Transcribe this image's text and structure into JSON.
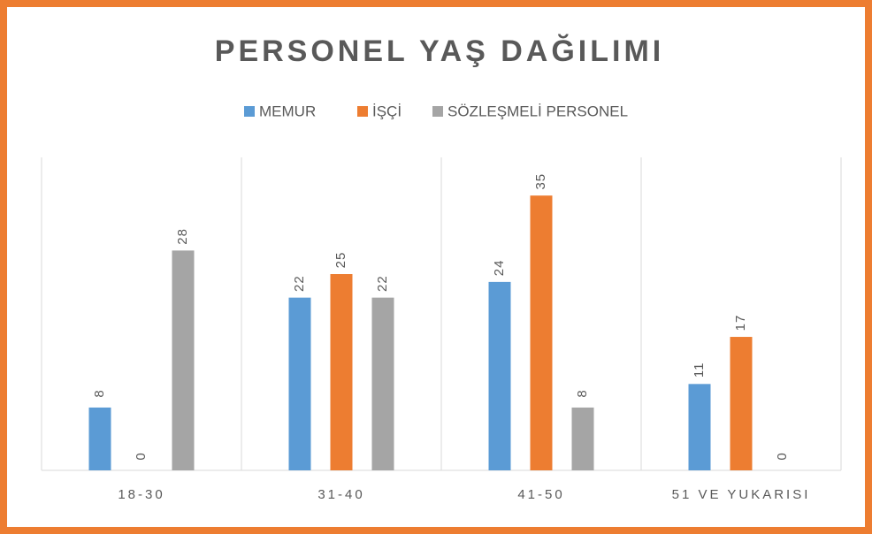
{
  "chart_data": {
    "type": "bar",
    "title": "PERSONEL YAŞ DAĞILIMI",
    "categories": [
      "18-30",
      "31-40",
      "41-50",
      "51 VE YUKARISI"
    ],
    "series": [
      {
        "name": "MEMUR",
        "color": "#5b9bd5",
        "values": [
          8,
          22,
          24,
          11
        ]
      },
      {
        "name": "İŞÇİ",
        "color": "#ed7d31",
        "values": [
          0,
          25,
          35,
          17
        ]
      },
      {
        "name": "SÖZLEŞMELİ PERSONEL",
        "color": "#a5a5a5",
        "values": [
          28,
          22,
          8,
          0
        ]
      }
    ],
    "legend": "top"
  }
}
